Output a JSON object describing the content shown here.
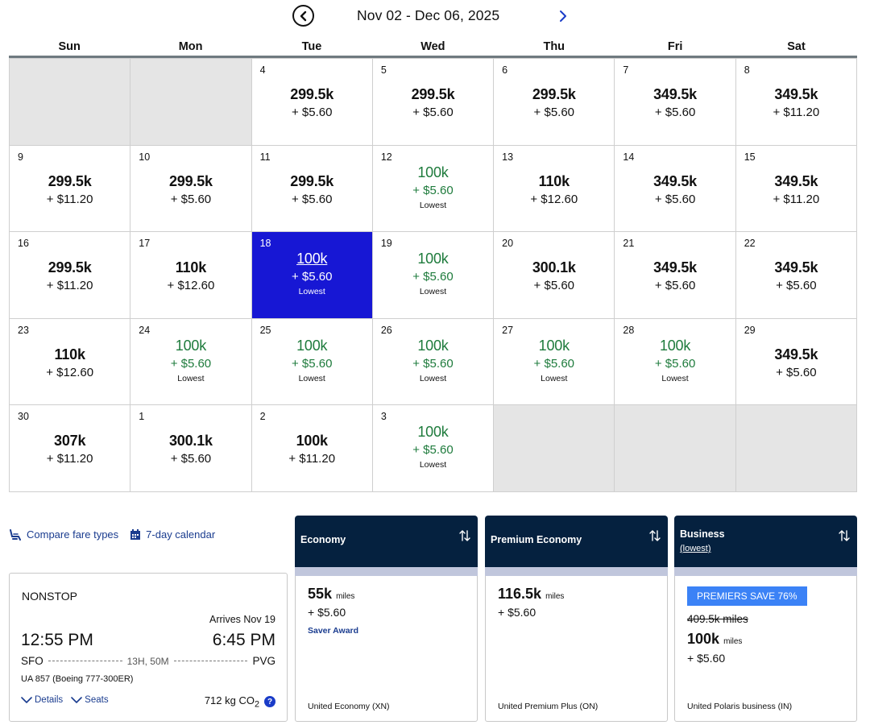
{
  "calendar": {
    "range_title": "Nov 02 - Dec 06, 2025",
    "weekdays": [
      "Sun",
      "Mon",
      "Tue",
      "Wed",
      "Thu",
      "Fri",
      "Sat"
    ],
    "lowest_label": "Lowest",
    "weeks": [
      [
        {
          "empty": true
        },
        {
          "empty": true
        },
        {
          "day": "4",
          "miles": "299.5k",
          "fee": "+ $5.60"
        },
        {
          "day": "5",
          "miles": "299.5k",
          "fee": "+ $5.60"
        },
        {
          "day": "6",
          "miles": "299.5k",
          "fee": "+ $5.60"
        },
        {
          "day": "7",
          "miles": "349.5k",
          "fee": "+ $5.60"
        },
        {
          "day": "8",
          "miles": "349.5k",
          "fee": "+ $11.20"
        }
      ],
      [
        {
          "day": "9",
          "miles": "299.5k",
          "fee": "+ $11.20"
        },
        {
          "day": "10",
          "miles": "299.5k",
          "fee": "+ $5.60"
        },
        {
          "day": "11",
          "miles": "299.5k",
          "fee": "+ $5.60"
        },
        {
          "day": "12",
          "miles": "100k",
          "fee": "+ $5.60",
          "lowest": true
        },
        {
          "day": "13",
          "miles": "110k",
          "fee": "+ $12.60"
        },
        {
          "day": "14",
          "miles": "349.5k",
          "fee": "+ $5.60"
        },
        {
          "day": "15",
          "miles": "349.5k",
          "fee": "+ $11.20"
        }
      ],
      [
        {
          "day": "16",
          "miles": "299.5k",
          "fee": "+ $11.20"
        },
        {
          "day": "17",
          "miles": "110k",
          "fee": "+ $12.60"
        },
        {
          "day": "18",
          "miles": "100k",
          "fee": "+ $5.60",
          "lowest": true,
          "selected": true
        },
        {
          "day": "19",
          "miles": "100k",
          "fee": "+ $5.60",
          "lowest": true
        },
        {
          "day": "20",
          "miles": "300.1k",
          "fee": "+ $5.60"
        },
        {
          "day": "21",
          "miles": "349.5k",
          "fee": "+ $5.60"
        },
        {
          "day": "22",
          "miles": "349.5k",
          "fee": "+ $5.60"
        }
      ],
      [
        {
          "day": "23",
          "miles": "110k",
          "fee": "+ $12.60"
        },
        {
          "day": "24",
          "miles": "100k",
          "fee": "+ $5.60",
          "lowest": true
        },
        {
          "day": "25",
          "miles": "100k",
          "fee": "+ $5.60",
          "lowest": true
        },
        {
          "day": "26",
          "miles": "100k",
          "fee": "+ $5.60",
          "lowest": true
        },
        {
          "day": "27",
          "miles": "100k",
          "fee": "+ $5.60",
          "lowest": true
        },
        {
          "day": "28",
          "miles": "100k",
          "fee": "+ $5.60",
          "lowest": true
        },
        {
          "day": "29",
          "miles": "349.5k",
          "fee": "+ $5.60"
        }
      ],
      [
        {
          "day": "30",
          "miles": "307k",
          "fee": "+ $11.20"
        },
        {
          "day": "1",
          "miles": "300.1k",
          "fee": "+ $5.60"
        },
        {
          "day": "2",
          "miles": "100k",
          "fee": "+ $11.20"
        },
        {
          "day": "3",
          "miles": "100k",
          "fee": "+ $5.60",
          "lowest": true
        },
        {
          "empty": true
        },
        {
          "empty": true
        },
        {
          "empty": true
        }
      ]
    ]
  },
  "links": {
    "compare_fare_types": "Compare fare types",
    "seven_day_calendar": "7-day calendar"
  },
  "flight": {
    "stops": "NONSTOP",
    "arrives_note": "Arrives Nov 19",
    "depart_time": "12:55 PM",
    "arrive_time": "6:45 PM",
    "origin": "SFO",
    "destination": "PVG",
    "duration": "13H, 50M",
    "aircraft": "UA 857 (Boeing 777-300ER)",
    "details_label": "Details",
    "seats_label": "Seats",
    "co2_value": "712 kg CO",
    "co2_sub": "2"
  },
  "fares": {
    "economy": {
      "title": "Economy",
      "miles": "55k",
      "miles_unit": "miles",
      "fee": "+ $5.60",
      "tag": "Saver Award",
      "fare_class": "United Economy (XN)"
    },
    "premium": {
      "title": "Premium Economy",
      "miles": "116.5k",
      "miles_unit": "miles",
      "fee": "+ $5.60",
      "fare_class": "United Premium Plus (ON)"
    },
    "business": {
      "title": "Business",
      "subtitle": "(lowest)",
      "badge": "PREMIERS SAVE 76%",
      "original_miles": "409.5k miles",
      "miles": "100k",
      "miles_unit": "miles",
      "fee": "+ $5.60",
      "fare_class": "United Polaris business (IN)"
    }
  },
  "colors": {
    "selected_cell": "#1717d4",
    "lowest_price": "#1e7b3c",
    "fare_header": "#05213f",
    "badge": "#3b82f6",
    "link": "#1a3c8f"
  }
}
